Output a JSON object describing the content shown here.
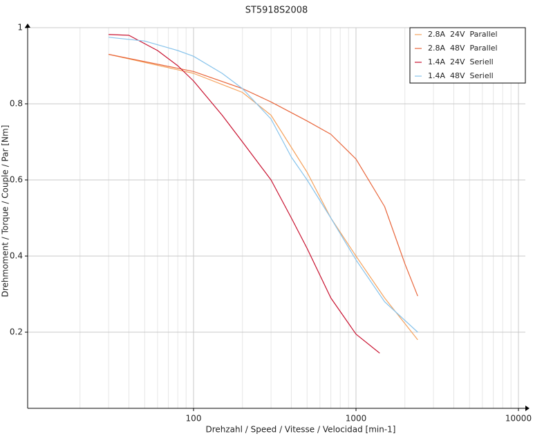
{
  "chart_data": {
    "type": "line",
    "title": "ST5918S2008",
    "x_label": "Drehzahl / Speed / Vitesse / Velocidad [min-1]",
    "y_label": "Drehmoment / Torque / Couple / Par [Nm]",
    "xscale": "log",
    "xlim": [
      10,
      10000
    ],
    "ylim": [
      0,
      1
    ],
    "xticks": [
      100,
      1000,
      10000
    ],
    "yticks": [
      0.2,
      0.4,
      0.6,
      0.8,
      1
    ],
    "grid": true,
    "minor_grid": true,
    "legend": "upper right",
    "series": [
      {
        "name": "2.8A  24V  Parallel",
        "color": "#f5a25d",
        "x": [
          30,
          100,
          200,
          300,
          500,
          700,
          1000,
          1500,
          2400
        ],
        "values": [
          0.93,
          0.88,
          0.83,
          0.77,
          0.62,
          0.5,
          0.4,
          0.29,
          0.18
        ]
      },
      {
        "name": "2.8A  48V  Parallel",
        "color": "#e8653a",
        "x": [
          30,
          100,
          200,
          300,
          500,
          700,
          1000,
          1500,
          2000,
          2400
        ],
        "values": [
          0.93,
          0.885,
          0.84,
          0.805,
          0.755,
          0.72,
          0.655,
          0.53,
          0.38,
          0.295
        ]
      },
      {
        "name": "1.4A  24V  Seriell",
        "color": "#c8102e",
        "x": [
          30,
          40,
          60,
          80,
          100,
          150,
          200,
          300,
          400,
          500,
          700,
          1000,
          1400
        ],
        "values": [
          0.982,
          0.98,
          0.94,
          0.9,
          0.86,
          0.77,
          0.7,
          0.6,
          0.5,
          0.42,
          0.29,
          0.195,
          0.145
        ]
      },
      {
        "name": "1.4A  48V  Seriell",
        "color": "#87c3eb",
        "x": [
          30,
          50,
          80,
          100,
          150,
          200,
          300,
          400,
          500,
          700,
          1000,
          1500,
          2400
        ],
        "values": [
          0.975,
          0.965,
          0.94,
          0.925,
          0.88,
          0.84,
          0.76,
          0.66,
          0.6,
          0.5,
          0.39,
          0.28,
          0.2
        ]
      }
    ]
  }
}
